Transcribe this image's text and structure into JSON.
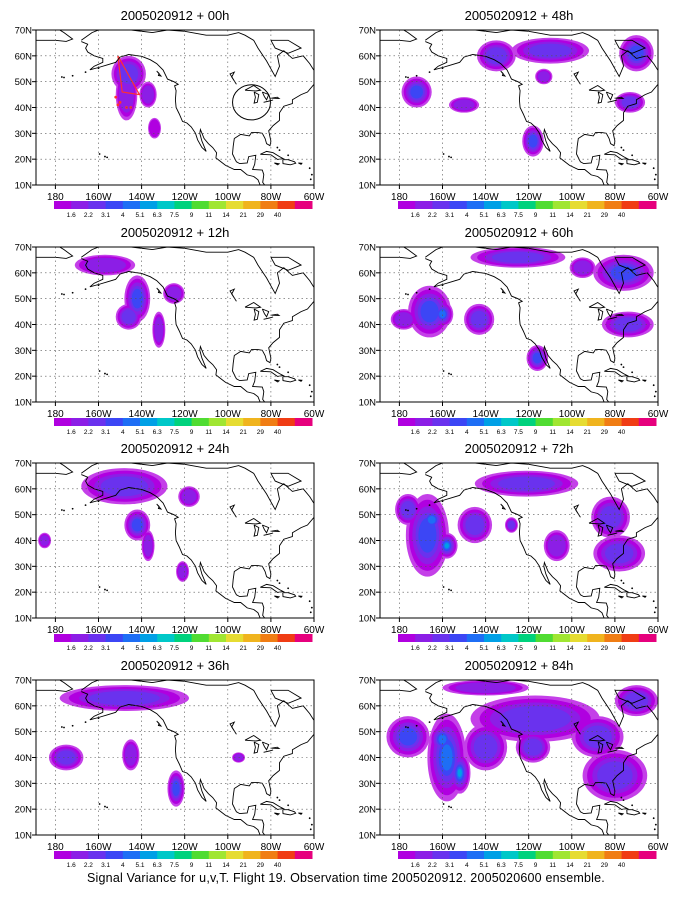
{
  "figure_caption": "Signal Variance for u,v,T. Flight 19. Observation time 2005020912. 2005020600 ensemble.",
  "lon_ticks": [
    "180",
    "160W",
    "140W",
    "120W",
    "100W",
    "80W",
    "60W"
  ],
  "lat_ticks": [
    "10N",
    "20N",
    "30N",
    "40N",
    "50N",
    "60N",
    "70N"
  ],
  "colorbar": {
    "labels": [
      "1.6",
      "2.2",
      "3.1",
      "4",
      "5.1",
      "6.3",
      "7.5",
      "9",
      "11",
      "14",
      "21",
      "29",
      "40"
    ],
    "colors": [
      "#b000e0",
      "#8c1ee6",
      "#6a32ee",
      "#3c46f5",
      "#1e6ef5",
      "#00a0e6",
      "#00c8c8",
      "#00d27d",
      "#50dc32",
      "#a0e632",
      "#e6dc32",
      "#f0b41e",
      "#f07d14",
      "#f03c14",
      "#e6007d"
    ]
  },
  "panels": [
    {
      "title": "2005020912 + 00h",
      "blobs": [
        [
          -146,
          53,
          8,
          7,
          0.6
        ],
        [
          -147,
          45,
          5,
          10,
          0.45
        ],
        [
          -137,
          45,
          4,
          5,
          0.4
        ],
        [
          -134,
          32,
          3,
          4,
          0.2
        ]
      ],
      "circle": [
        -89,
        42,
        8
      ]
    },
    {
      "title": "2005020912 + 48h",
      "blobs": [
        [
          -172,
          46,
          7,
          6,
          0.75
        ],
        [
          -150,
          41,
          7,
          3,
          0.45
        ],
        [
          -118,
          27,
          5,
          6,
          0.75
        ],
        [
          -135,
          60,
          9,
          6,
          0.5
        ],
        [
          -110,
          62,
          18,
          5,
          0.55
        ],
        [
          -70,
          61,
          8,
          7,
          0.75
        ],
        [
          -73,
          42,
          7,
          4,
          0.6
        ],
        [
          -113,
          52,
          4,
          3,
          0.3
        ]
      ],
      "circle": null
    },
    {
      "title": "2005020912 + 12h",
      "blobs": [
        [
          -157,
          63,
          14,
          4,
          0.45
        ],
        [
          -142,
          50,
          6,
          9,
          0.7
        ],
        [
          -146,
          43,
          6,
          5,
          0.55
        ],
        [
          -132,
          38,
          3,
          7,
          0.35
        ],
        [
          -125,
          52,
          5,
          4,
          0.35
        ]
      ],
      "circle": null
    },
    {
      "title": "2005020912 + 60h",
      "blobs": [
        [
          -166,
          45,
          10,
          10,
          0.75
        ],
        [
          -160,
          44,
          5,
          5,
          0.9
        ],
        [
          -143,
          42,
          7,
          6,
          0.5
        ],
        [
          -116,
          27,
          5,
          5,
          0.75
        ],
        [
          -178,
          42,
          6,
          4,
          0.35
        ],
        [
          -125,
          66,
          22,
          4,
          0.5
        ],
        [
          -76,
          60,
          14,
          7,
          0.7
        ],
        [
          -74,
          40,
          12,
          5,
          0.55
        ],
        [
          -95,
          62,
          6,
          4,
          0.35
        ]
      ],
      "circle": null
    },
    {
      "title": "2005020912 + 24h",
      "blobs": [
        [
          -148,
          61,
          20,
          7,
          0.5
        ],
        [
          -142,
          46,
          6,
          6,
          0.75
        ],
        [
          -137,
          38,
          3,
          6,
          0.35
        ],
        [
          -121,
          28,
          3,
          4,
          0.3
        ],
        [
          -185,
          40,
          3,
          3,
          0.3
        ],
        [
          -118,
          57,
          5,
          4,
          0.35
        ]
      ],
      "circle": null
    },
    {
      "title": "2005020912 + 72h",
      "blobs": [
        [
          -167,
          42,
          10,
          16,
          0.8
        ],
        [
          -158,
          38,
          5,
          5,
          0.95
        ],
        [
          -165,
          48,
          6,
          5,
          0.9
        ],
        [
          -176,
          52,
          6,
          6,
          0.6
        ],
        [
          -145,
          46,
          8,
          7,
          0.55
        ],
        [
          -121,
          62,
          24,
          5,
          0.5
        ],
        [
          -82,
          49,
          9,
          8,
          0.6
        ],
        [
          -78,
          35,
          12,
          7,
          0.55
        ],
        [
          -107,
          38,
          6,
          6,
          0.4
        ],
        [
          -128,
          46,
          3,
          3,
          0.6
        ]
      ],
      "circle": null
    },
    {
      "title": "2005020912 + 36h",
      "blobs": [
        [
          -148,
          63,
          30,
          5,
          0.5
        ],
        [
          -145,
          41,
          4,
          6,
          0.4
        ],
        [
          -175,
          40,
          8,
          5,
          0.5
        ],
        [
          -124,
          28,
          4,
          7,
          0.75
        ],
        [
          -95,
          40,
          3,
          2,
          0.3
        ]
      ],
      "circle": null
    },
    {
      "title": "2005020912 + 84h",
      "blobs": [
        [
          -158,
          40,
          9,
          17,
          0.85
        ],
        [
          -152,
          34,
          5,
          8,
          0.95
        ],
        [
          -160,
          47,
          6,
          6,
          0.9
        ],
        [
          -176,
          48,
          10,
          8,
          0.7
        ],
        [
          -140,
          44,
          10,
          9,
          0.65
        ],
        [
          -117,
          55,
          30,
          9,
          0.55
        ],
        [
          -88,
          48,
          12,
          8,
          0.6
        ],
        [
          -80,
          33,
          15,
          10,
          0.65
        ],
        [
          -70,
          62,
          10,
          6,
          0.65
        ],
        [
          -140,
          67,
          20,
          3,
          0.45
        ],
        [
          -118,
          44,
          8,
          6,
          0.5
        ]
      ],
      "circle": null
    }
  ]
}
